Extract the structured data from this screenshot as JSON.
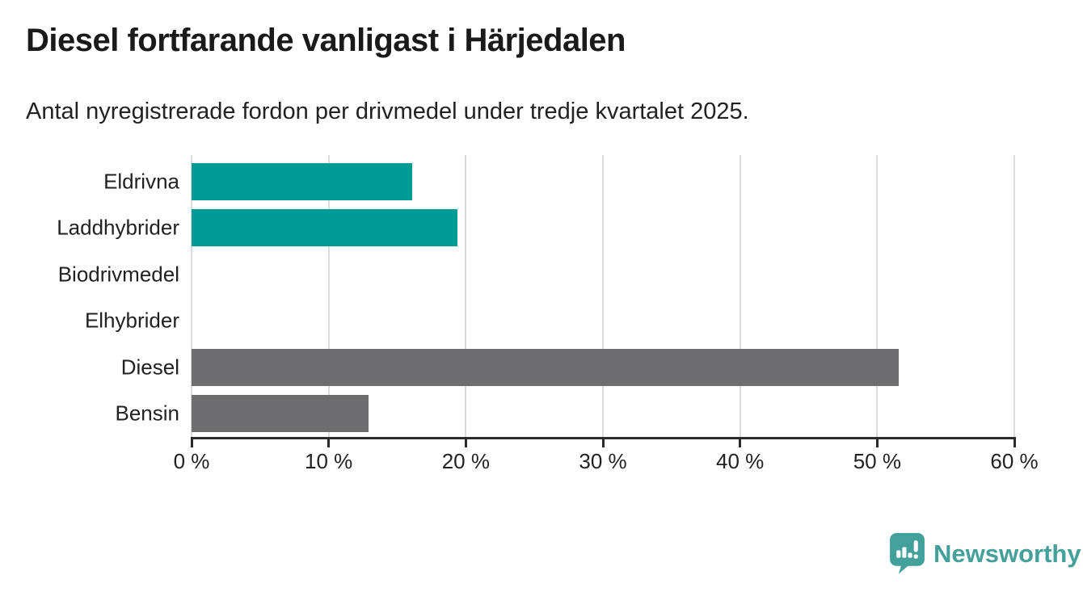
{
  "header": {
    "title": "Diesel fortfarande vanligast i Härjedalen",
    "subtitle": "Antal nyregistrerade fordon per drivmedel under tredje kvartalet 2025."
  },
  "chart_data": {
    "type": "bar",
    "orientation": "horizontal",
    "title": "Diesel fortfarande vanligast i Härjedalen",
    "subtitle": "Antal nyregistrerade fordon per drivmedel under tredje kvartalet 2025.",
    "categories": [
      "Eldrivna",
      "Laddhybrider",
      "Biodrivmedel",
      "Elhybrider",
      "Diesel",
      "Bensin"
    ],
    "values": [
      16.1,
      19.4,
      0,
      0,
      51.6,
      12.9
    ],
    "bar_colors": [
      "#009b94",
      "#009b94",
      "#009b94",
      "#009b94",
      "#6e6e71",
      "#6e6e71"
    ],
    "unit": "%",
    "xlabel": "",
    "ylabel": "",
    "xlim": [
      0,
      60
    ],
    "x_ticks": [
      0,
      10,
      20,
      30,
      40,
      50,
      60
    ],
    "x_tick_labels": [
      "0 %",
      "10 %",
      "20 %",
      "30 %",
      "40 %",
      "50 %",
      "60 %"
    ],
    "grid": "vertical-only",
    "legend": "none"
  },
  "branding": {
    "logo_text": "Newsworthy",
    "logo_icon": "newsworthy-bubble-chart-icon"
  },
  "colors": {
    "background": "#ffffff",
    "teal_bar": "#009b94",
    "gray_bar": "#6e6e71",
    "gridline": "#dcdcdc",
    "axis": "#2b2b2b",
    "title_text": "#1a1a1a",
    "label_text": "#222222",
    "brand_teal": "#44a09a"
  }
}
